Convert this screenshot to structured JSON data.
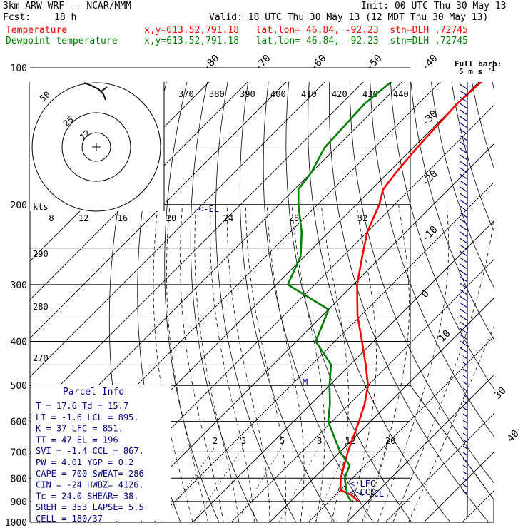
{
  "header": {
    "model": "3km ARW-WRF -- NCAR/MMM",
    "init": "Init: 00 UTC Thu 30 May 13",
    "fcst_label": "Fcst:",
    "fcst_value": "18 h",
    "valid": "Valid: 18 UTC Thu 30 May 13 (12 MDT Thu 30 May 13)",
    "temp_label": "Temperature",
    "dew_label": "Dewpoint temperature",
    "location": "x,y=613.52,791.18   lat,lon= 46.84, -92.23  stn=DLH ,72745"
  },
  "colors": {
    "temperature": "#ff0000",
    "dewpoint": "#008000",
    "barbs": "#00007f",
    "text": "#000000"
  },
  "chart_data": {
    "type": "line",
    "title": "3km ARW-WRF -- NCAR/MMM",
    "pressure_axis": {
      "scale": "log",
      "ticks": [
        "100",
        "200",
        "300",
        "400",
        "500",
        "600",
        "700",
        "800",
        "900",
        "1000"
      ]
    },
    "isotherm_labels": [
      "-80",
      "-70",
      "-60",
      "-50",
      "-40",
      "-30",
      "-20",
      "-10",
      "0",
      "10",
      "30",
      "40"
    ],
    "theta_e_labels": [
      "370",
      "380",
      "390",
      "400",
      "410",
      "420",
      "430",
      "440"
    ],
    "theta_labels": [
      "290",
      "280",
      "270"
    ],
    "mixing_ratio_labels": [
      "2",
      "3",
      "5",
      "8",
      "12",
      "20"
    ],
    "series": [
      {
        "name": "Temperature",
        "points": [
          [
            100,
            -59
          ],
          [
            120,
            -60
          ],
          [
            150,
            -59
          ],
          [
            170,
            -58
          ],
          [
            185,
            -57
          ],
          [
            200,
            -54
          ],
          [
            230,
            -50
          ],
          [
            260,
            -45
          ],
          [
            300,
            -39
          ],
          [
            350,
            -31
          ],
          [
            400,
            -23
          ],
          [
            450,
            -16
          ],
          [
            500,
            -10
          ],
          [
            550,
            -6
          ],
          [
            600,
            -3
          ],
          [
            700,
            2
          ],
          [
            800,
            7
          ],
          [
            850,
            10
          ],
          [
            870,
            14
          ],
          [
            900,
            17.6
          ]
        ]
      },
      {
        "name": "Dewpoint temperature",
        "points": [
          [
            100,
            -82
          ],
          [
            120,
            -84
          ],
          [
            150,
            -83
          ],
          [
            170,
            -80
          ],
          [
            185,
            -79
          ],
          [
            200,
            -75
          ],
          [
            230,
            -67
          ],
          [
            260,
            -61
          ],
          [
            300,
            -57
          ],
          [
            340,
            -40
          ],
          [
            400,
            -35
          ],
          [
            450,
            -25
          ],
          [
            500,
            -20
          ],
          [
            550,
            -15
          ],
          [
            600,
            -11
          ],
          [
            700,
            0
          ],
          [
            750,
            6
          ],
          [
            800,
            8
          ],
          [
            870,
            13
          ],
          [
            900,
            15.7
          ]
        ]
      }
    ],
    "markers": [
      "<-EL",
      "<-LFC",
      "<-CCL",
      "<-LCL",
      "M"
    ],
    "hodograph": {
      "units_label": "kts",
      "ring_labels": [
        "50",
        "25",
        "12"
      ],
      "speed_labels": [
        "8",
        "12",
        "16",
        "20",
        "24",
        "28",
        "32"
      ]
    },
    "wind_barb_legend": {
      "line1": "Full barb:",
      "line2": "5 m s",
      "superscript": "-1"
    },
    "parcel_info": {
      "title": "Parcel Info",
      "rows": [
        [
          "T     =   17.6  Td =  15.7"
        ],
        [
          "LI    =   -1.6  LCL =  895."
        ],
        [
          "K     =     37  LFC =  851."
        ],
        [
          "TT    =     47  EL  =  196"
        ],
        [
          "SVI   =   -1.4  CCL =  867."
        ],
        [
          "PW    =   4.01  YGP =   0.2"
        ],
        [
          "CAPE  =    700  SWEAT=  286"
        ],
        [
          "CIN   =    -24  HWBZ= 4126."
        ],
        [
          "Tc    =   24.0  SHEAR=  38."
        ],
        [
          "SREH  =    353  LAPSE=  5.5"
        ],
        [
          "CELL  = 180/37"
        ]
      ]
    }
  }
}
